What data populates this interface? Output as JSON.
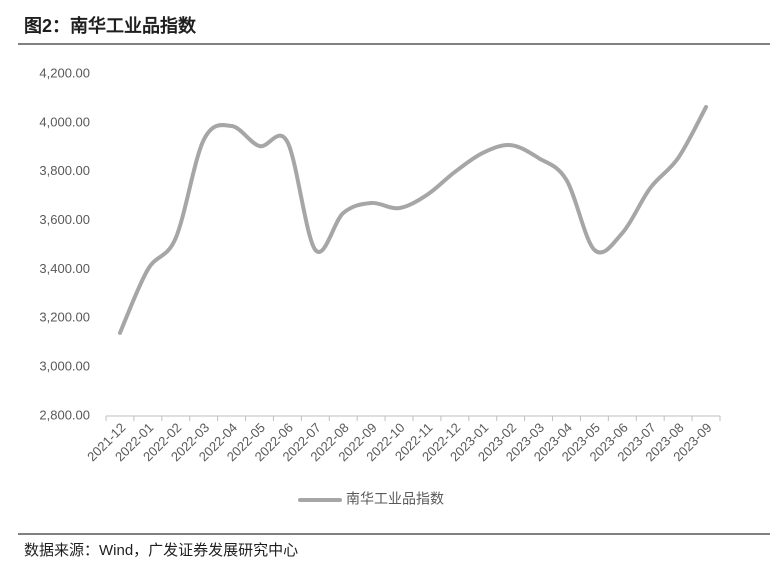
{
  "chart_data": {
    "type": "line",
    "title": "图2：南华工业品指数",
    "source": "数据来源：Wind，广发证券发展研究中心",
    "categories": [
      "2021-12",
      "2022-01",
      "2022-02",
      "2022-03",
      "2022-04",
      "2022-05",
      "2022-06",
      "2022-07",
      "2022-08",
      "2022-09",
      "2022-10",
      "2022-11",
      "2022-12",
      "2023-01",
      "2023-02",
      "2023-03",
      "2023-04",
      "2023-05",
      "2023-06",
      "2023-07",
      "2023-08",
      "2023-09"
    ],
    "series": [
      {
        "name": "南华工业品指数",
        "color": "#a6a6a6",
        "values": [
          3140,
          3400,
          3529,
          3930,
          3987,
          3905,
          3922,
          3480,
          3631,
          3672,
          3651,
          3705,
          3799,
          3877,
          3909,
          3856,
          3766,
          3480,
          3549,
          3733,
          3856,
          4065
        ]
      }
    ],
    "ylim": [
      2800,
      4200
    ],
    "yticks": [
      {
        "value": 2800,
        "label": "2,800.00"
      },
      {
        "value": 3000,
        "label": "3,000.00"
      },
      {
        "value": 3200,
        "label": "3,200.00"
      },
      {
        "value": 3400,
        "label": "3,400.00"
      },
      {
        "value": 3600,
        "label": "3,600.00"
      },
      {
        "value": 3800,
        "label": "3,800.00"
      },
      {
        "value": 4000,
        "label": "4,000.00"
      },
      {
        "value": 4200,
        "label": "4,200.00"
      }
    ],
    "grid": false,
    "legend": "bottom"
  }
}
